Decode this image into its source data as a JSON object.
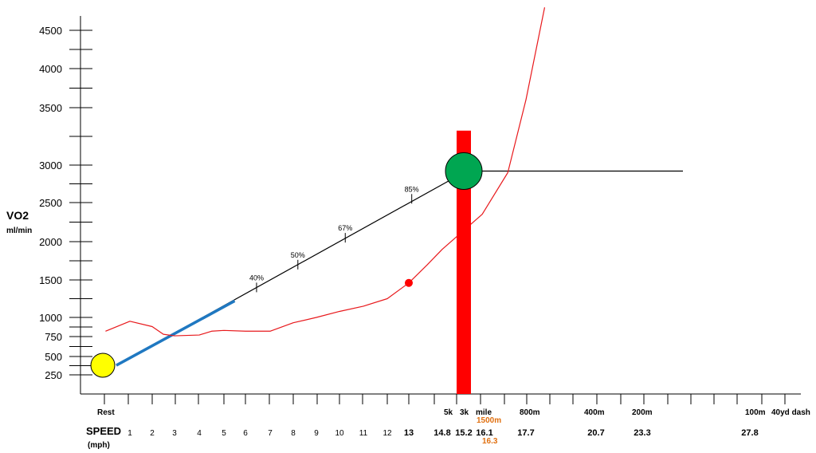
{
  "chart_data": {
    "type": "line",
    "ylabel": "VO2",
    "ylabel_unit": "ml/min",
    "xlabel": "SPEED",
    "xlabel_unit": "(mph)",
    "y_ticks": [
      "250",
      "500",
      "750",
      "1000",
      "1500",
      "2000",
      "2500",
      "3000",
      "3500",
      "4000",
      "4500"
    ],
    "race_labels": [
      "Rest",
      "5k",
      "3k",
      "mile",
      "800m",
      "400m",
      "200m",
      "100m",
      "40yd dash"
    ],
    "race_label_orange": "1500m",
    "speed_labels": [
      "1",
      "2",
      "3",
      "4",
      "5",
      "6",
      "7",
      "8",
      "9",
      "10",
      "11",
      "12",
      "13",
      "14.8",
      "15.2",
      "16.1",
      "17.7",
      "20.7",
      "23.3",
      "27.8"
    ],
    "speed_label_orange": "16.3",
    "percent_markers": [
      {
        "label": "40%",
        "vo2": 1400
      },
      {
        "label": "50%",
        "vo2": 1700
      },
      {
        "label": "67%",
        "vo2": 2050
      },
      {
        "label": "85%",
        "vo2": 2550
      }
    ],
    "series": [
      {
        "key": "vo2_line",
        "color": "#000000",
        "points": [
          [
            0.5,
            380
          ],
          [
            15.2,
            2900
          ]
        ]
      },
      {
        "key": "walking_segment",
        "color": "#1f78c1",
        "points": [
          [
            0.5,
            380
          ],
          [
            5.5,
            1220
          ]
        ]
      },
      {
        "key": "red_curve",
        "color": "#e8191c",
        "points": [
          [
            0.1,
            820
          ],
          [
            1,
            950
          ],
          [
            2,
            880
          ],
          [
            2.5,
            780
          ],
          [
            3,
            760
          ],
          [
            4,
            770
          ],
          [
            4.5,
            820
          ],
          [
            5,
            830
          ],
          [
            6,
            820
          ],
          [
            7,
            820
          ],
          [
            8,
            930
          ],
          [
            9,
            1000
          ],
          [
            10,
            1080
          ],
          [
            11,
            1150
          ],
          [
            12,
            1250
          ],
          [
            13,
            1460
          ],
          [
            14,
            1700
          ],
          [
            14.8,
            1900
          ],
          [
            16,
            2350
          ],
          [
            17,
            2900
          ],
          [
            17.7,
            3600
          ],
          [
            18.5,
            4800
          ]
        ]
      },
      {
        "key": "vo2max_level",
        "color": "#000000",
        "points": [
          [
            15.2,
            2920
          ],
          [
            25,
            2920
          ]
        ]
      }
    ],
    "markers": [
      {
        "key": "rest_point",
        "color": "#ffff00",
        "x": 0,
        "vo2": 380
      },
      {
        "key": "threshold_point",
        "color": "#ff0000",
        "x": 13,
        "vo2": 1460
      },
      {
        "key": "vo2max_point",
        "color": "#00a651",
        "x": 15.2,
        "vo2": 2920
      }
    ],
    "vertical_bar": {
      "color": "#ff0000",
      "x": 15.2,
      "vo2_top": 3300
    },
    "colors": {
      "accent_blue": "#1f78c1",
      "red": "#ff0000",
      "green": "#00a651",
      "yellow": "#ffff00",
      "orange": "#e07010"
    }
  }
}
